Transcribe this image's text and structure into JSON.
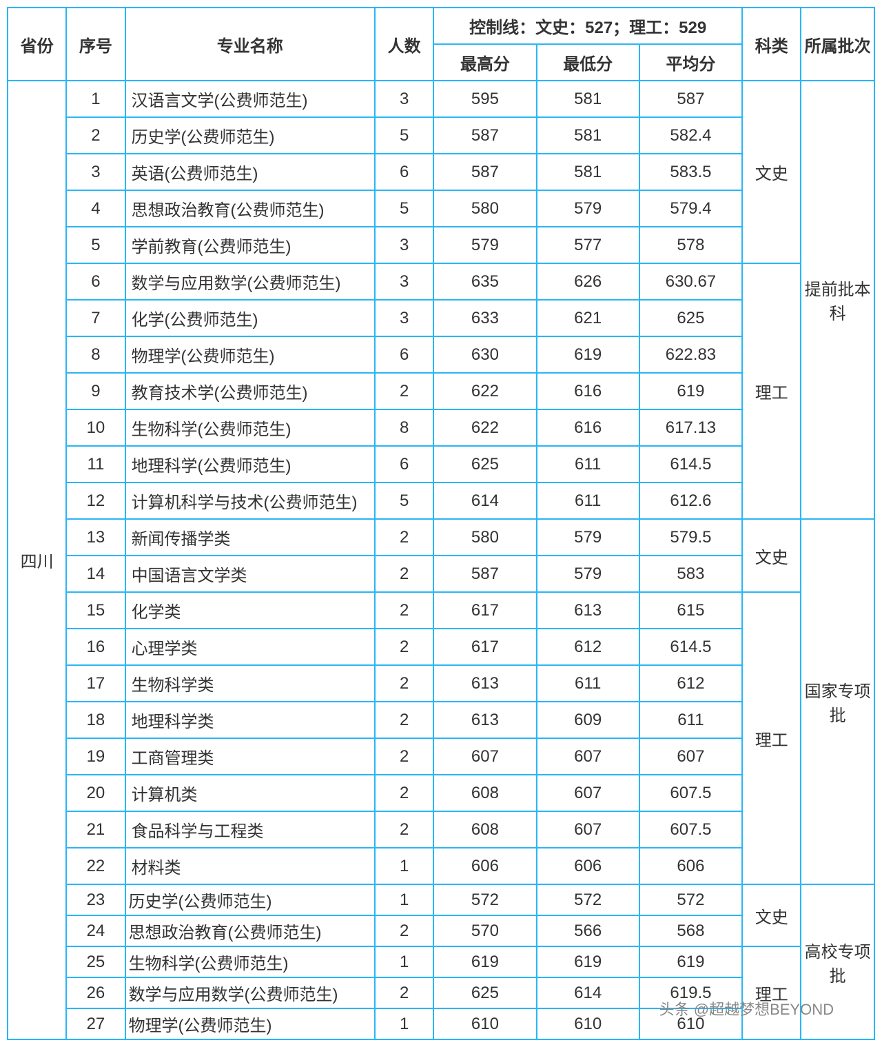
{
  "table": {
    "border_color": "#29b6f6",
    "background_color": "#ffffff",
    "text_color": "#333333",
    "font_size": 24,
    "header": {
      "province": "省份",
      "index": "序号",
      "major": "专业名称",
      "count": "人数",
      "control_line": "控制线：文史：527；理工：529",
      "max_score": "最高分",
      "min_score": "最低分",
      "avg_score": "平均分",
      "subject": "科类",
      "batch": "所属批次"
    },
    "col_widths": {
      "province": 80,
      "index": 80,
      "major": 320,
      "count": 80,
      "max": 130,
      "min": 130,
      "avg": 130,
      "subject": 80,
      "batch": 90
    },
    "province_label": "四川",
    "watermark": "头条 @超越梦想BEYOND",
    "groups": [
      {
        "batch": "提前批本科",
        "subjects": [
          {
            "subject": "文史",
            "rows": [
              {
                "idx": 1,
                "major": "汉语言文学(公费师范生)",
                "count": 3,
                "max": 595,
                "min": 581,
                "avg": "587"
              },
              {
                "idx": 2,
                "major": "历史学(公费师范生)",
                "count": 5,
                "max": 587,
                "min": 581,
                "avg": "582.4"
              },
              {
                "idx": 3,
                "major": "英语(公费师范生)",
                "count": 6,
                "max": 587,
                "min": 581,
                "avg": "583.5"
              },
              {
                "idx": 4,
                "major": "思想政治教育(公费师范生)",
                "count": 5,
                "max": 580,
                "min": 579,
                "avg": "579.4"
              },
              {
                "idx": 5,
                "major": "学前教育(公费师范生)",
                "count": 3,
                "max": 579,
                "min": 577,
                "avg": "578"
              }
            ]
          },
          {
            "subject": "理工",
            "rows": [
              {
                "idx": 6,
                "major": "数学与应用数学(公费师范生)",
                "count": 3,
                "max": 635,
                "min": 626,
                "avg": "630.67"
              },
              {
                "idx": 7,
                "major": "化学(公费师范生)",
                "count": 3,
                "max": 633,
                "min": 621,
                "avg": "625"
              },
              {
                "idx": 8,
                "major": "物理学(公费师范生)",
                "count": 6,
                "max": 630,
                "min": 619,
                "avg": "622.83"
              },
              {
                "idx": 9,
                "major": "教育技术学(公费师范生)",
                "count": 2,
                "max": 622,
                "min": 616,
                "avg": "619"
              },
              {
                "idx": 10,
                "major": "生物科学(公费师范生)",
                "count": 8,
                "max": 622,
                "min": 616,
                "avg": "617.13"
              },
              {
                "idx": 11,
                "major": "地理科学(公费师范生)",
                "count": 6,
                "max": 625,
                "min": 611,
                "avg": "614.5"
              },
              {
                "idx": 12,
                "major": "计算机科学与技术(公费师范生)",
                "count": 5,
                "max": 614,
                "min": 611,
                "avg": "612.6"
              }
            ]
          }
        ]
      },
      {
        "batch": "国家专项批",
        "subjects": [
          {
            "subject": "文史",
            "rows": [
              {
                "idx": 13,
                "major": "新闻传播学类",
                "count": 2,
                "max": 580,
                "min": 579,
                "avg": "579.5"
              },
              {
                "idx": 14,
                "major": "中国语言文学类",
                "count": 2,
                "max": 587,
                "min": 579,
                "avg": "583"
              }
            ]
          },
          {
            "subject": "理工",
            "rows": [
              {
                "idx": 15,
                "major": "化学类",
                "count": 2,
                "max": 617,
                "min": 613,
                "avg": "615"
              },
              {
                "idx": 16,
                "major": "心理学类",
                "count": 2,
                "max": 617,
                "min": 612,
                "avg": "614.5"
              },
              {
                "idx": 17,
                "major": "生物科学类",
                "count": 2,
                "max": 613,
                "min": 611,
                "avg": "612"
              },
              {
                "idx": 18,
                "major": "地理科学类",
                "count": 2,
                "max": 613,
                "min": 609,
                "avg": "611"
              },
              {
                "idx": 19,
                "major": "工商管理类",
                "count": 2,
                "max": 607,
                "min": 607,
                "avg": "607"
              },
              {
                "idx": 20,
                "major": "计算机类",
                "count": 2,
                "max": 608,
                "min": 607,
                "avg": "607.5"
              },
              {
                "idx": 21,
                "major": "食品科学与工程类",
                "count": 2,
                "max": 608,
                "min": 607,
                "avg": "607.5"
              },
              {
                "idx": 22,
                "major": "材料类",
                "count": 1,
                "max": 606,
                "min": 606,
                "avg": "606"
              }
            ]
          }
        ]
      },
      {
        "batch": "高校专项批",
        "tight": true,
        "subjects": [
          {
            "subject": "文史",
            "rows": [
              {
                "idx": 23,
                "major": "历史学(公费师范生)",
                "count": 1,
                "max": 572,
                "min": 572,
                "avg": "572"
              },
              {
                "idx": 24,
                "major": "思想政治教育(公费师范生)",
                "count": 2,
                "max": 570,
                "min": 566,
                "avg": "568"
              }
            ]
          },
          {
            "subject": "理工",
            "rows": [
              {
                "idx": 25,
                "major": "生物科学(公费师范生)",
                "count": 1,
                "max": 619,
                "min": 619,
                "avg": "619"
              },
              {
                "idx": 26,
                "major": "数学与应用数学(公费师范生)",
                "count": 2,
                "max": 625,
                "min": 614,
                "avg": "619.5"
              },
              {
                "idx": 27,
                "major": "物理学(公费师范生)",
                "count": 1,
                "max": 610,
                "min": 610,
                "avg": "610"
              }
            ]
          }
        ]
      }
    ]
  }
}
